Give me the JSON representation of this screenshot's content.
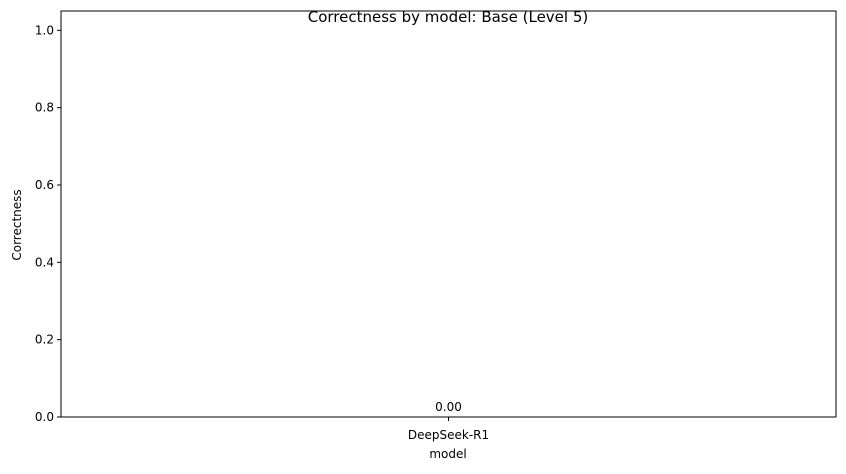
{
  "chart_data": {
    "type": "bar",
    "title": "Correctness by model: Base (Level 5)",
    "xlabel": "model",
    "ylabel": "Correctness",
    "categories": [
      "DeepSeek-R1"
    ],
    "values": [
      0.0
    ],
    "data_labels": [
      "0.00"
    ],
    "ylim": [
      0,
      1.05
    ],
    "yticks": [
      0.0,
      0.2,
      0.4,
      0.6,
      0.8,
      1.0
    ],
    "ytick_labels": [
      "0.0",
      "0.2",
      "0.4",
      "0.6",
      "0.8",
      "1.0"
    ],
    "grid": false,
    "legend": "none",
    "colors": {
      "bar": "#1f77b4",
      "axes": "#000000",
      "background": "#ffffff"
    }
  }
}
